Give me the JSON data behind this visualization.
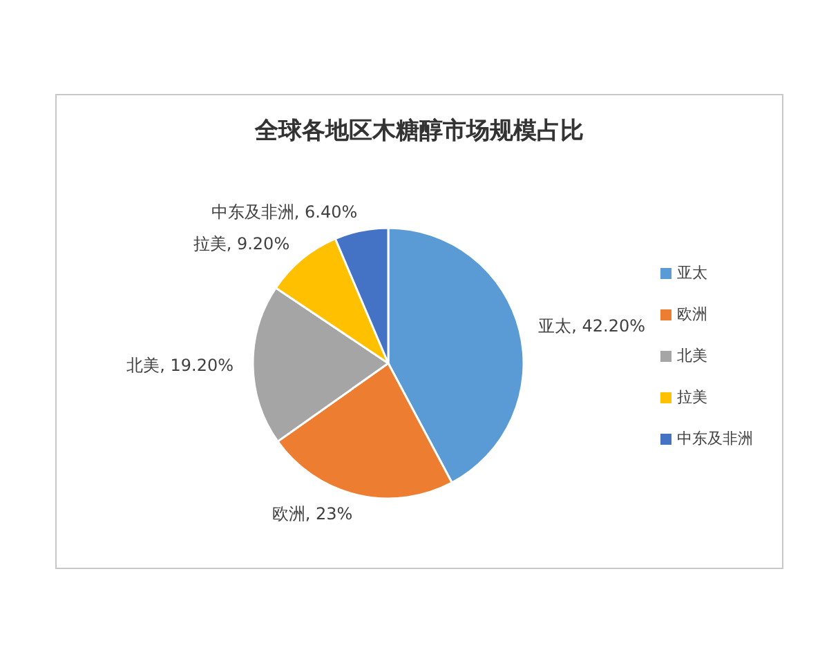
{
  "chart_data": {
    "type": "pie",
    "title": "全球各地区木糖醇市场规模占比",
    "categories": [
      "亚太",
      "欧洲",
      "北美",
      "拉美",
      "中东及非洲"
    ],
    "values": [
      42.2,
      23,
      19.2,
      9.2,
      6.4
    ],
    "colors": [
      "#5b9bd5",
      "#ed7d31",
      "#a5a5a5",
      "#ffc000",
      "#4472c4"
    ],
    "value_labels": [
      "亚太, 42.20%",
      "欧洲, 23%",
      "北美, 19.20%",
      "拉美, 9.20%",
      "中东及非洲, 6.40%"
    ],
    "legend": "right"
  }
}
